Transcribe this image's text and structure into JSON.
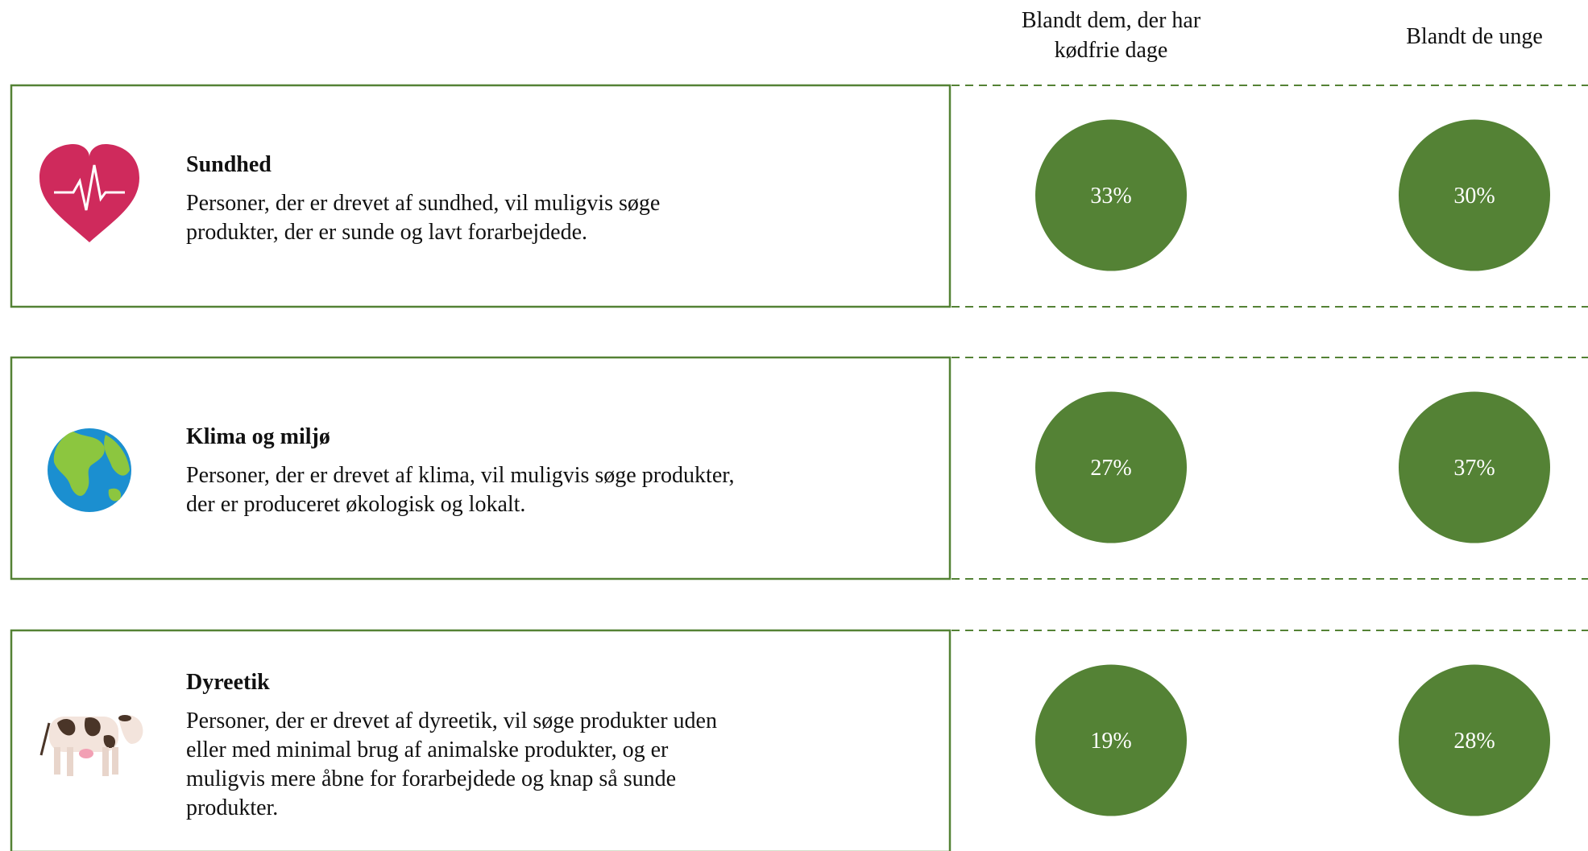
{
  "columns": [
    "Blandt dem, der har|kødfrie dage",
    "Blandt de unge"
  ],
  "rows": [
    {
      "title": "Sundhed",
      "description": [
        "Personer, der er drevet af sundhed, vil muligvis søge",
        "produkter, der er sunde og lavt forarbejdede."
      ],
      "values": [
        "33%",
        "30%"
      ]
    },
    {
      "title": "Klima og miljø",
      "description": [
        "Personer, der er drevet af klima, vil muligvis søge produkter,",
        "der er produceret økologisk og lokalt."
      ],
      "values": [
        "27%",
        "37%"
      ]
    },
    {
      "title": "Dyreetik",
      "description": [
        "Personer, der er drevet af dyreetik, vil søge produkter uden",
        "eller med minimal brug af animalske produkter, og er",
        "muligvis mere åbne for forarbejdede og knap så sunde",
        "produkter."
      ],
      "values": [
        "19%",
        "28%"
      ]
    }
  ]
}
